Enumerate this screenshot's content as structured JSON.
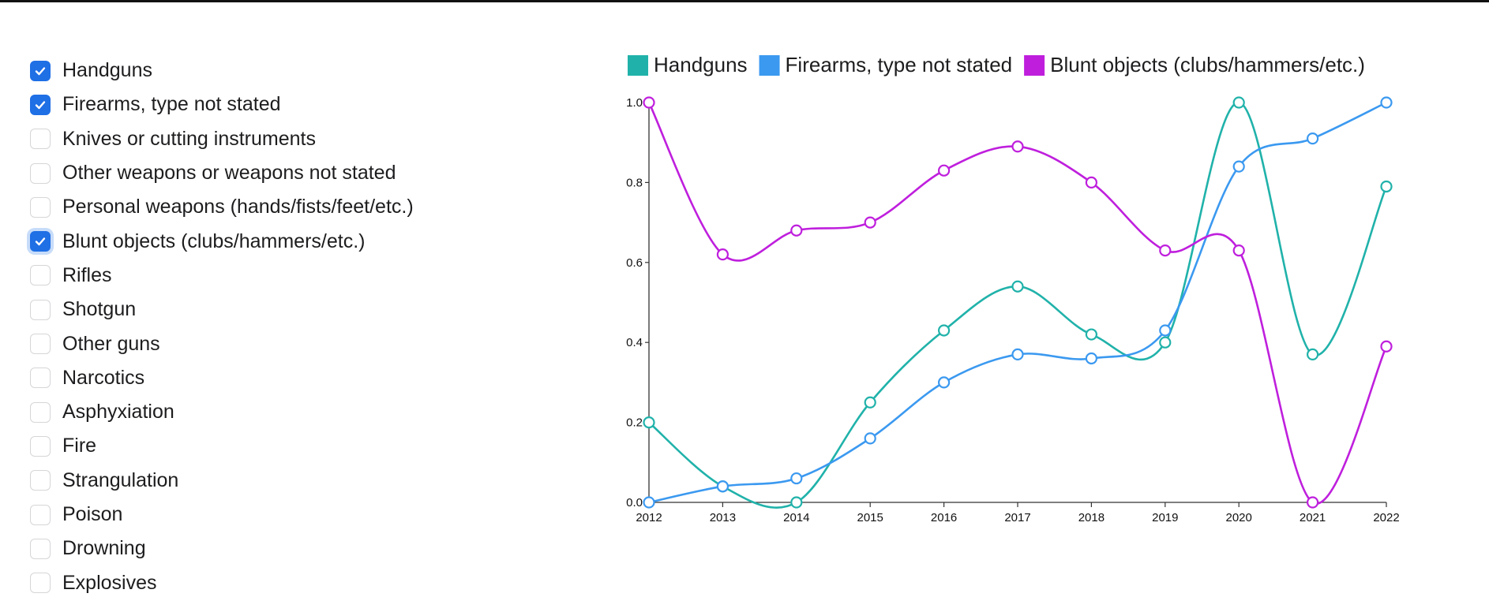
{
  "filters": [
    {
      "label": "Handguns",
      "checked": true
    },
    {
      "label": "Firearms, type not stated",
      "checked": true
    },
    {
      "label": "Knives or cutting instruments",
      "checked": false
    },
    {
      "label": "Other weapons or weapons not stated",
      "checked": false
    },
    {
      "label": "Personal weapons (hands/fists/feet/etc.)",
      "checked": false
    },
    {
      "label": "Blunt objects (clubs/hammers/etc.)",
      "checked": true,
      "focused": true
    },
    {
      "label": "Rifles",
      "checked": false
    },
    {
      "label": "Shotgun",
      "checked": false
    },
    {
      "label": "Other guns",
      "checked": false
    },
    {
      "label": "Narcotics",
      "checked": false
    },
    {
      "label": "Asphyxiation",
      "checked": false
    },
    {
      "label": "Fire",
      "checked": false
    },
    {
      "label": "Strangulation",
      "checked": false
    },
    {
      "label": "Poison",
      "checked": false
    },
    {
      "label": "Drowning",
      "checked": false
    },
    {
      "label": "Explosives",
      "checked": false
    }
  ],
  "colors": {
    "checkbox_checked": "#1f6fe5",
    "axis": "#333333"
  },
  "chart_data": {
    "type": "line",
    "x": [
      2012,
      2013,
      2014,
      2015,
      2016,
      2017,
      2018,
      2019,
      2020,
      2021,
      2022
    ],
    "xticks": [
      "2012",
      "2013",
      "2014",
      "2015",
      "2016",
      "2017",
      "2018",
      "2019",
      "2020",
      "2021",
      "2022"
    ],
    "yticks": [
      "0.0",
      "0.2",
      "0.4",
      "0.6",
      "0.8",
      "1.0"
    ],
    "ylim": [
      0,
      1
    ],
    "legend_position": "top",
    "grid": false,
    "curve": "smooth",
    "markers": "hollow circles",
    "series": [
      {
        "name": "Handguns",
        "color": "#20b2aa",
        "values": [
          0.2,
          0.04,
          0.0,
          0.25,
          0.43,
          0.54,
          0.42,
          0.4,
          1.0,
          0.37,
          0.79
        ]
      },
      {
        "name": "Firearms, type not stated",
        "color": "#3b99f0",
        "values": [
          0.0,
          0.04,
          0.06,
          0.16,
          0.3,
          0.37,
          0.36,
          0.43,
          0.84,
          0.91,
          1.0
        ]
      },
      {
        "name": "Blunt objects (clubs/hammers/etc.)",
        "color": "#bf1fdd",
        "values": [
          1.0,
          0.62,
          0.68,
          0.7,
          0.83,
          0.89,
          0.8,
          0.63,
          0.63,
          0.0,
          0.39
        ]
      }
    ]
  }
}
